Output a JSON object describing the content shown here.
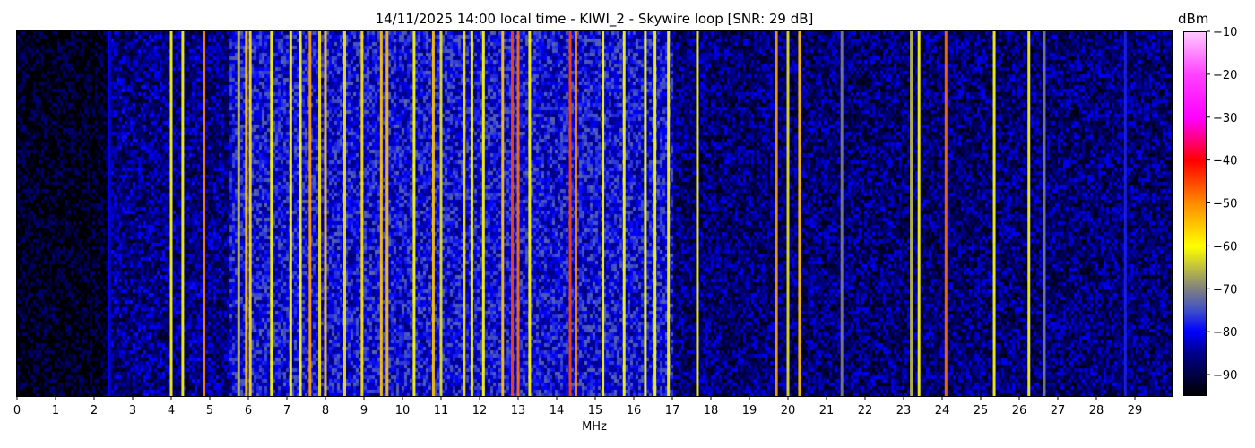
{
  "chart_data": {
    "type": "heatmap",
    "title": "14/11/2025 14:00 local time - KIWI_2 - Skywire loop [SNR: 29 dB]",
    "xlabel": "MHz",
    "ylabel": "",
    "xlim": [
      0,
      30
    ],
    "x_ticks": [
      "0",
      "1",
      "2",
      "3",
      "4",
      "5",
      "6",
      "7",
      "8",
      "9",
      "10",
      "11",
      "12",
      "13",
      "14",
      "15",
      "16",
      "17",
      "18",
      "19",
      "20",
      "21",
      "22",
      "23",
      "24",
      "25",
      "26",
      "27",
      "28",
      "29"
    ],
    "colorbar": {
      "label": "dBm",
      "range": [
        -95,
        -10
      ],
      "ticks": [
        "−10",
        "−20",
        "−30",
        "−40",
        "−50",
        "−60",
        "−70",
        "−80",
        "−90"
      ],
      "colormap": [
        {
          "dbm": -95,
          "color": "#000000"
        },
        {
          "dbm": -85,
          "color": "#00008c"
        },
        {
          "dbm": -80,
          "color": "#0000ff"
        },
        {
          "dbm": -75,
          "color": "#4050c8"
        },
        {
          "dbm": -70,
          "color": "#808080"
        },
        {
          "dbm": -65,
          "color": "#c0c040"
        },
        {
          "dbm": -60,
          "color": "#ffff00"
        },
        {
          "dbm": -50,
          "color": "#ff8c00"
        },
        {
          "dbm": -40,
          "color": "#ff0000"
        },
        {
          "dbm": -30,
          "color": "#ff00ff"
        },
        {
          "dbm": -20,
          "color": "#ff40ff"
        },
        {
          "dbm": -10,
          "color": "#ffc8ff"
        }
      ]
    },
    "noise_floor": [
      {
        "from_mhz": 0,
        "to_mhz": 2.4,
        "dbm": -93
      },
      {
        "from_mhz": 2.4,
        "to_mhz": 5.5,
        "dbm": -86
      },
      {
        "from_mhz": 5.5,
        "to_mhz": 17,
        "dbm": -80
      },
      {
        "from_mhz": 17,
        "to_mhz": 30,
        "dbm": -87
      }
    ],
    "signals": [
      {
        "mhz": 2.4,
        "dbm": -80
      },
      {
        "mhz": 4.0,
        "dbm": -60
      },
      {
        "mhz": 4.3,
        "dbm": -60
      },
      {
        "mhz": 4.85,
        "dbm": -50
      },
      {
        "mhz": 5.75,
        "dbm": -65
      },
      {
        "mhz": 5.95,
        "dbm": -55
      },
      {
        "mhz": 6.05,
        "dbm": -58
      },
      {
        "mhz": 6.6,
        "dbm": -60
      },
      {
        "mhz": 7.1,
        "dbm": -60
      },
      {
        "mhz": 7.35,
        "dbm": -60
      },
      {
        "mhz": 7.6,
        "dbm": -52
      },
      {
        "mhz": 7.85,
        "dbm": -58
      },
      {
        "mhz": 8.0,
        "dbm": -55
      },
      {
        "mhz": 8.5,
        "dbm": -58
      },
      {
        "mhz": 8.95,
        "dbm": -58
      },
      {
        "mhz": 9.45,
        "dbm": -55
      },
      {
        "mhz": 9.6,
        "dbm": -55
      },
      {
        "mhz": 10.3,
        "dbm": -60
      },
      {
        "mhz": 10.8,
        "dbm": -55
      },
      {
        "mhz": 11.0,
        "dbm": -62
      },
      {
        "mhz": 11.6,
        "dbm": -58
      },
      {
        "mhz": 11.8,
        "dbm": -60
      },
      {
        "mhz": 12.1,
        "dbm": -60
      },
      {
        "mhz": 12.6,
        "dbm": -55
      },
      {
        "mhz": 12.85,
        "dbm": -45
      },
      {
        "mhz": 13.0,
        "dbm": -48
      },
      {
        "mhz": 13.3,
        "dbm": -60
      },
      {
        "mhz": 14.35,
        "dbm": -45
      },
      {
        "mhz": 14.5,
        "dbm": -50
      },
      {
        "mhz": 15.2,
        "dbm": -60
      },
      {
        "mhz": 15.75,
        "dbm": -60
      },
      {
        "mhz": 16.3,
        "dbm": -60
      },
      {
        "mhz": 16.55,
        "dbm": -60
      },
      {
        "mhz": 16.9,
        "dbm": -60
      },
      {
        "mhz": 17.65,
        "dbm": -60
      },
      {
        "mhz": 19.7,
        "dbm": -52
      },
      {
        "mhz": 20.0,
        "dbm": -62
      },
      {
        "mhz": 20.3,
        "dbm": -55
      },
      {
        "mhz": 21.4,
        "dbm": -70
      },
      {
        "mhz": 23.2,
        "dbm": -65
      },
      {
        "mhz": 23.4,
        "dbm": -60
      },
      {
        "mhz": 24.1,
        "dbm": -48
      },
      {
        "mhz": 25.35,
        "dbm": -60
      },
      {
        "mhz": 26.25,
        "dbm": -60
      },
      {
        "mhz": 26.65,
        "dbm": -70
      },
      {
        "mhz": 28.75,
        "dbm": -78
      }
    ]
  }
}
